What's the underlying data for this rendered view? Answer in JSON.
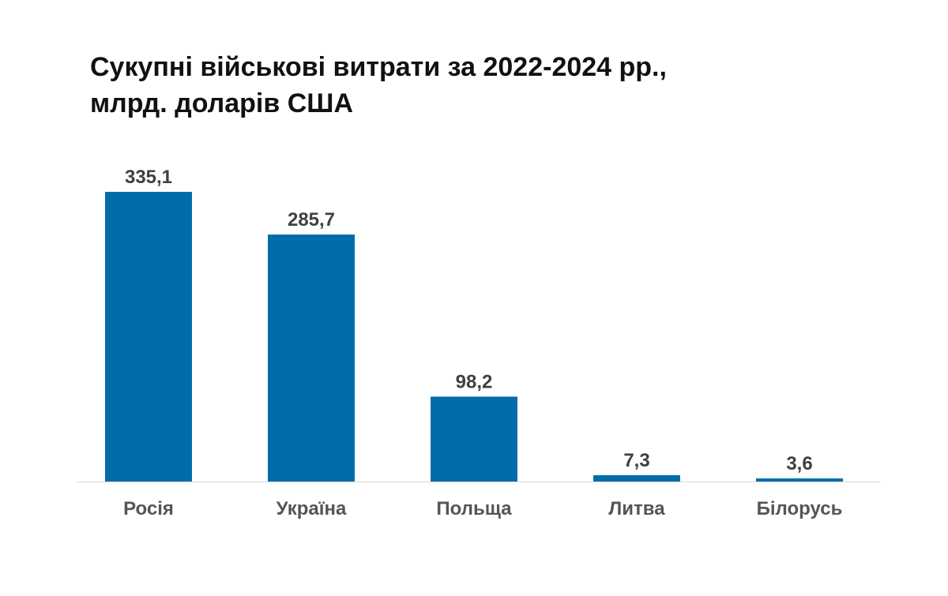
{
  "chart_data": {
    "type": "bar",
    "title_lines": [
      "Сукупні військові витрати за 2022-2024 рр.,",
      "млрд. доларів США"
    ],
    "categories": [
      "Росія",
      "Україна",
      "Польща",
      "Литва",
      "Білорусь"
    ],
    "values": [
      335.1,
      285.7,
      98.2,
      7.3,
      3.6
    ],
    "value_labels": [
      "335,1",
      "285,7",
      "98,2",
      "7,3",
      "3,6"
    ],
    "ylim": [
      0,
      335.1
    ],
    "grid": false,
    "legend": "none",
    "bar_color": "#006DAA",
    "baseline_color": "#d9d9d9"
  }
}
